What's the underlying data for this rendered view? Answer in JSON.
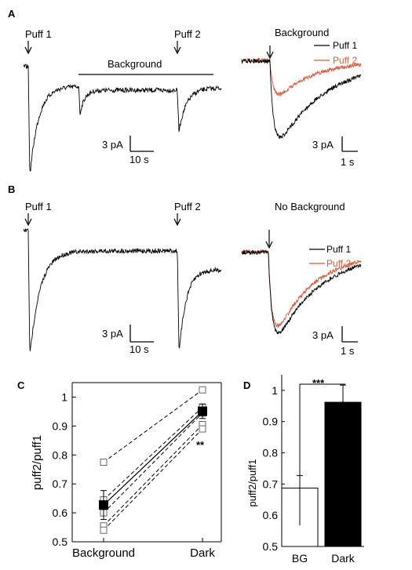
{
  "colors": {
    "puff1": "#000000",
    "puff2": "#d65a3a",
    "axis": "#000000"
  },
  "panel_A": {
    "letter": "A",
    "puff1_label": "Puff 1",
    "puff2_label": "Puff 2",
    "background_label": "Background",
    "scale_y": "3 pA",
    "scale_x": "10 s",
    "right": {
      "title": "Background",
      "legend": [
        "Puff 1",
        "Puff 2"
      ],
      "scale_y": "3 pA",
      "scale_x": "1 s"
    }
  },
  "panel_B": {
    "letter": "B",
    "puff1_label": "Puff 1",
    "puff2_label": "Puff 2",
    "scale_y": "3 pA",
    "scale_x": "10 s",
    "right": {
      "title": "No Background",
      "legend": [
        "Puff 1",
        "Puff 2"
      ],
      "scale_y": "3 pA",
      "scale_x": "1 s"
    }
  },
  "chart_data": [
    {
      "panel": "C",
      "type": "scatter",
      "categories": [
        "Background",
        "Dark"
      ],
      "ylabel": "puff2/puff1",
      "ylim": [
        0.5,
        1.05
      ],
      "yticks": [
        0.5,
        0.6,
        0.7,
        0.8,
        0.9,
        1
      ],
      "ytick_labels": [
        "0.5",
        "0.6",
        "0.7",
        "0.8",
        "0.9",
        "1"
      ],
      "individual": [
        {
          "values": [
            0.775,
            1.025
          ]
        },
        {
          "values": [
            0.645,
            0.965
          ]
        },
        {
          "values": [
            0.6,
            0.945
          ]
        },
        {
          "values": [
            0.555,
            0.905
          ]
        },
        {
          "values": [
            0.54,
            0.89
          ]
        }
      ],
      "mean": {
        "values": [
          0.627,
          0.951
        ],
        "err": [
          0.05,
          0.025
        ]
      },
      "annotation": "**"
    },
    {
      "panel": "D",
      "type": "bar",
      "categories": [
        "BG",
        "Dark"
      ],
      "values": [
        0.687,
        0.962
      ],
      "err": [
        0.04,
        0.055
      ],
      "bar_colors": [
        "#ffffff",
        "#000000"
      ],
      "ylabel": "puff2/puff1",
      "ylim": [
        0.5,
        1.05
      ],
      "yticks": [
        0.5,
        0.6,
        0.7,
        0.8,
        0.9,
        1
      ],
      "ytick_labels": [
        "0.5",
        "0.6",
        "0.7",
        "0.8",
        "0.9",
        "1"
      ],
      "annotation": "***"
    }
  ]
}
